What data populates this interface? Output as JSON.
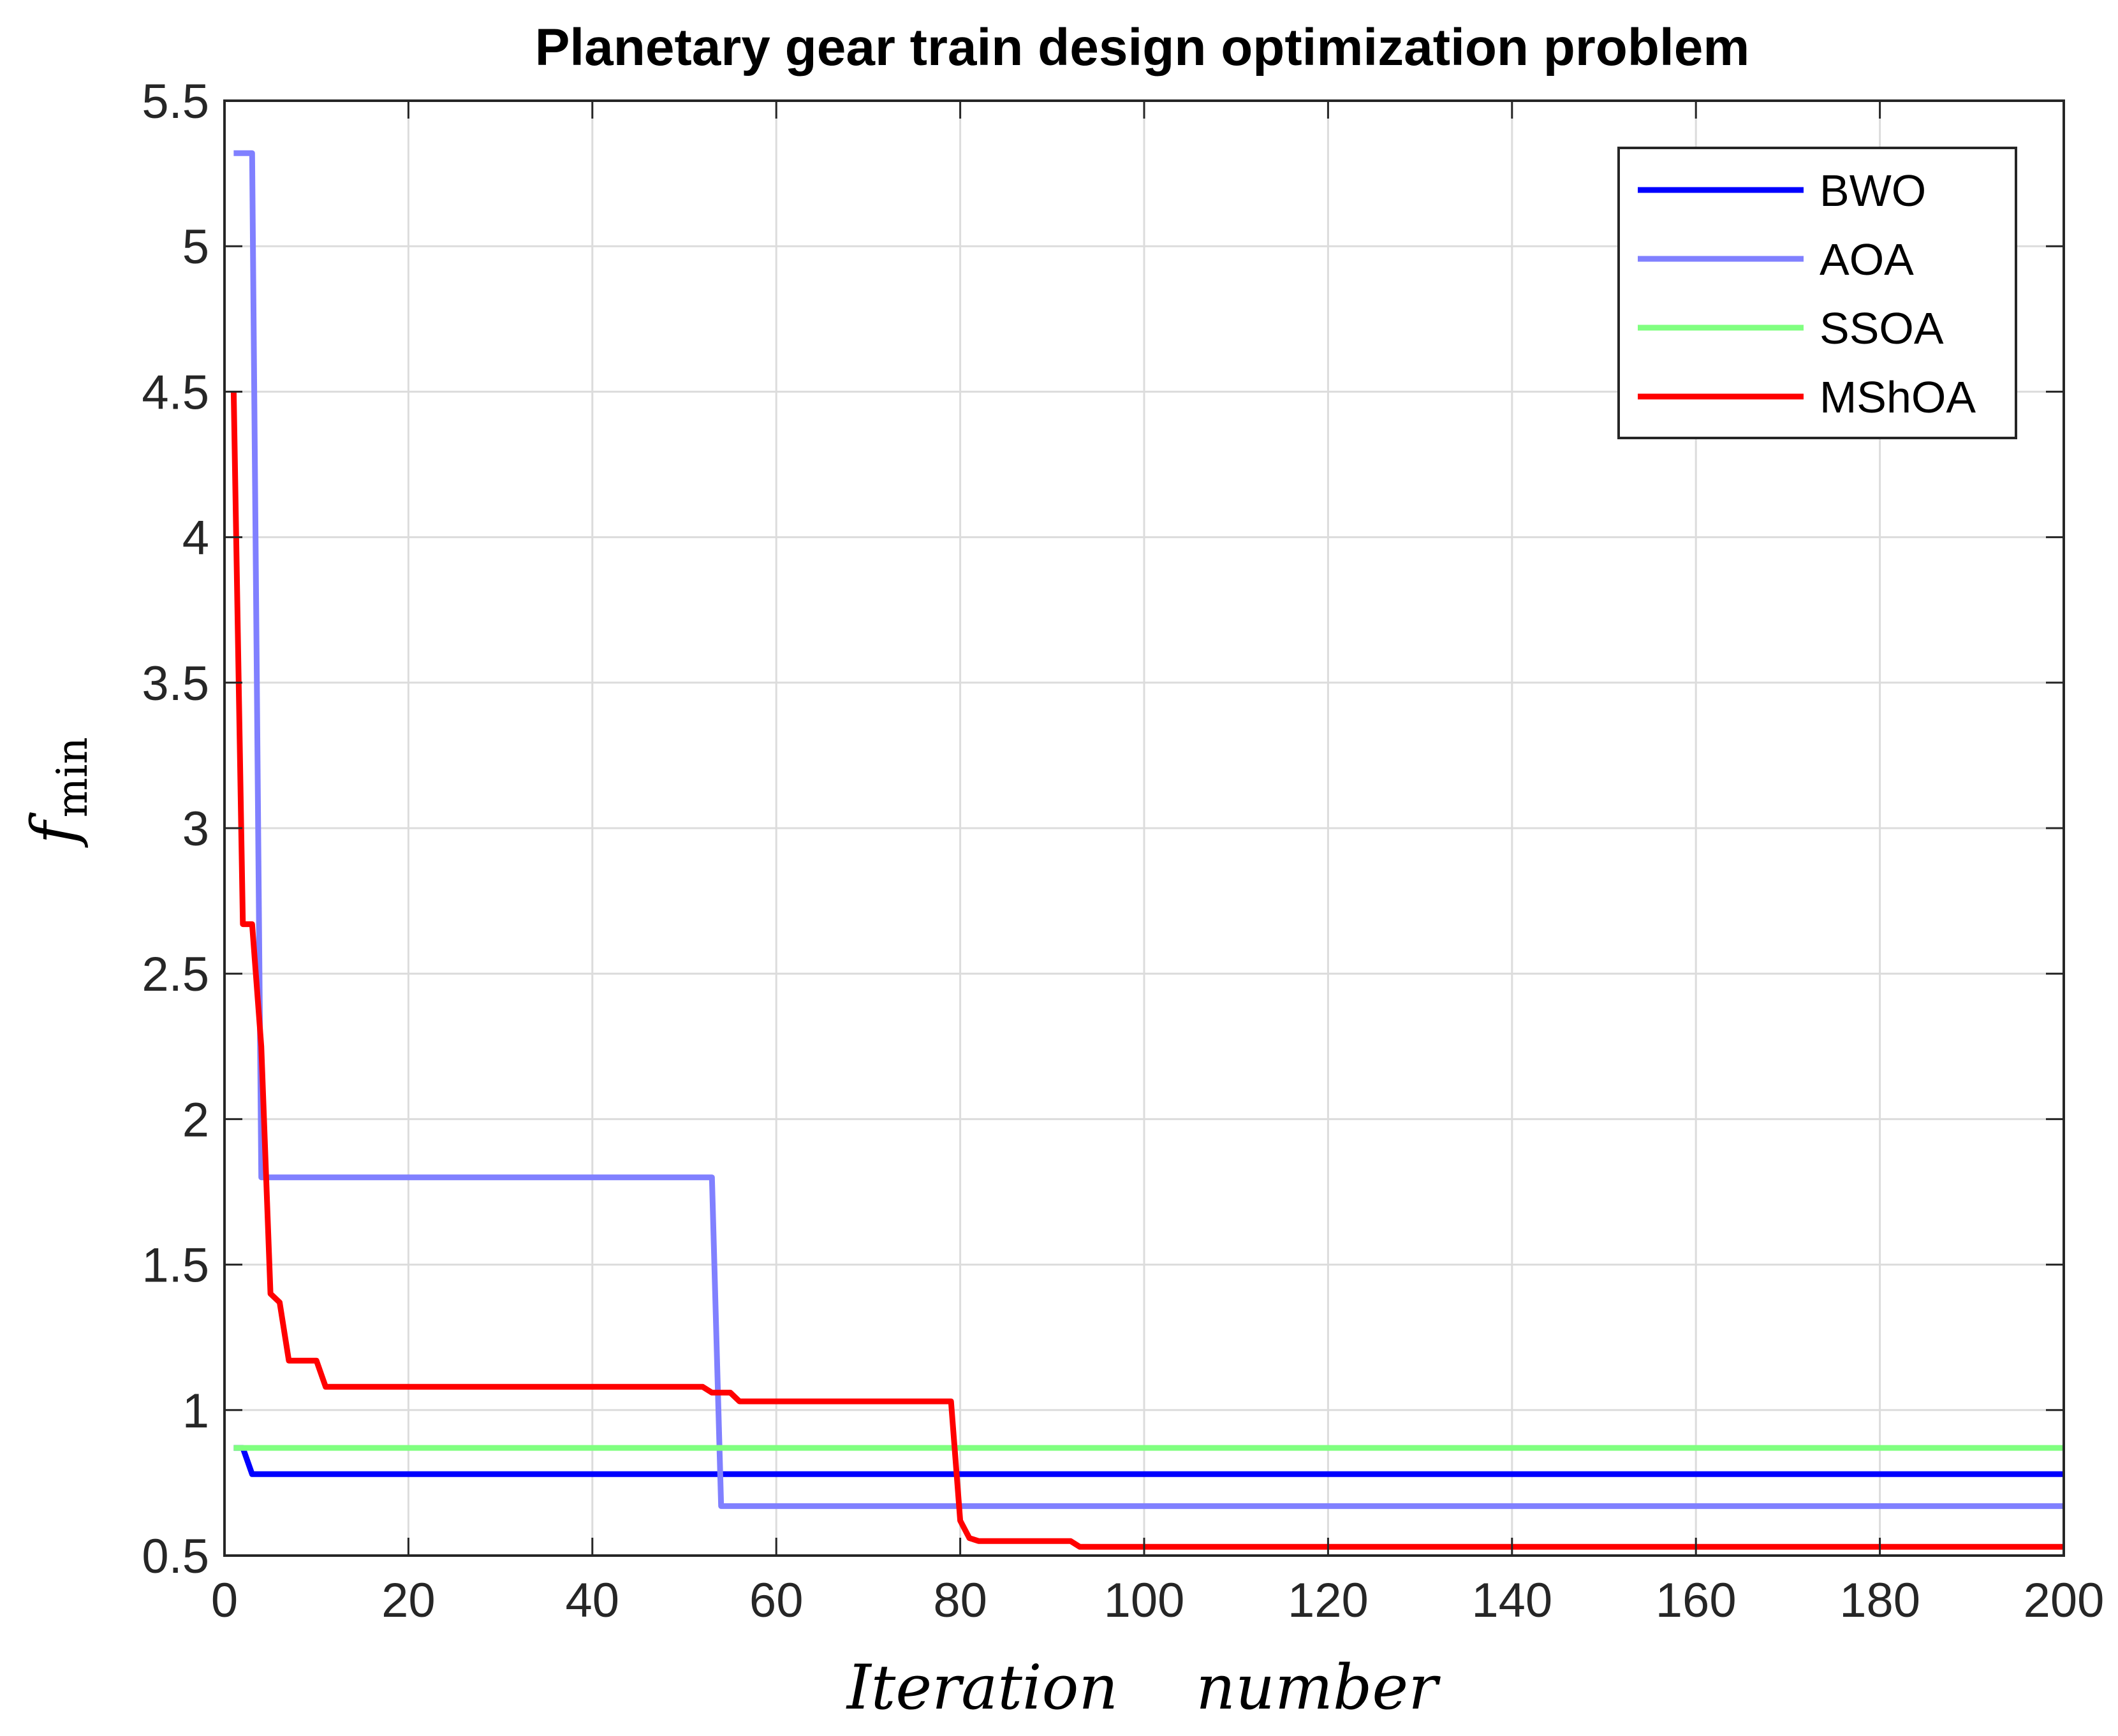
{
  "chart_data": {
    "type": "line",
    "title": "Planetary gear train design optimization problem",
    "xlabel": "Iteration    number",
    "ylabel": "f",
    "ylabel_subscript": "min",
    "xlim": [
      0,
      200
    ],
    "ylim": [
      0.5,
      5.5
    ],
    "xticks": [
      0,
      20,
      40,
      60,
      80,
      100,
      120,
      140,
      160,
      180,
      200
    ],
    "yticks": [
      0.5,
      1,
      1.5,
      2,
      2.5,
      3,
      3.5,
      4,
      4.5,
      5,
      5.5
    ],
    "ytick_labels": [
      "0.5",
      "1",
      "1.5",
      "2",
      "2.5",
      "3",
      "3.5",
      "4",
      "4.5",
      "5",
      "5.5"
    ],
    "grid": true,
    "legend_position": "top-right",
    "series": [
      {
        "name": "BWO",
        "color": "#0000ff",
        "points": [
          [
            1,
            0.87
          ],
          [
            2,
            0.87
          ],
          [
            3,
            0.78
          ],
          [
            200,
            0.78
          ]
        ]
      },
      {
        "name": "AOA",
        "color": "#8080ff",
        "points": [
          [
            1,
            5.32
          ],
          [
            3,
            5.32
          ],
          [
            4,
            1.8
          ],
          [
            53,
            1.8
          ],
          [
            54,
            0.67
          ],
          [
            200,
            0.67
          ]
        ]
      },
      {
        "name": "SSOA",
        "color": "#80ff80",
        "points": [
          [
            1,
            0.87
          ],
          [
            200,
            0.87
          ]
        ]
      },
      {
        "name": "MShOA",
        "color": "#ff0000",
        "points": [
          [
            1,
            4.5
          ],
          [
            2,
            2.67
          ],
          [
            3,
            2.67
          ],
          [
            4,
            2.25
          ],
          [
            5,
            1.4
          ],
          [
            6,
            1.37
          ],
          [
            7,
            1.17
          ],
          [
            10,
            1.17
          ],
          [
            11,
            1.08
          ],
          [
            52,
            1.08
          ],
          [
            53,
            1.06
          ],
          [
            55,
            1.06
          ],
          [
            56,
            1.03
          ],
          [
            79,
            1.03
          ],
          [
            80,
            0.62
          ],
          [
            81,
            0.56
          ],
          [
            82,
            0.55
          ],
          [
            92,
            0.55
          ],
          [
            93,
            0.53
          ],
          [
            200,
            0.53
          ]
        ]
      }
    ]
  }
}
